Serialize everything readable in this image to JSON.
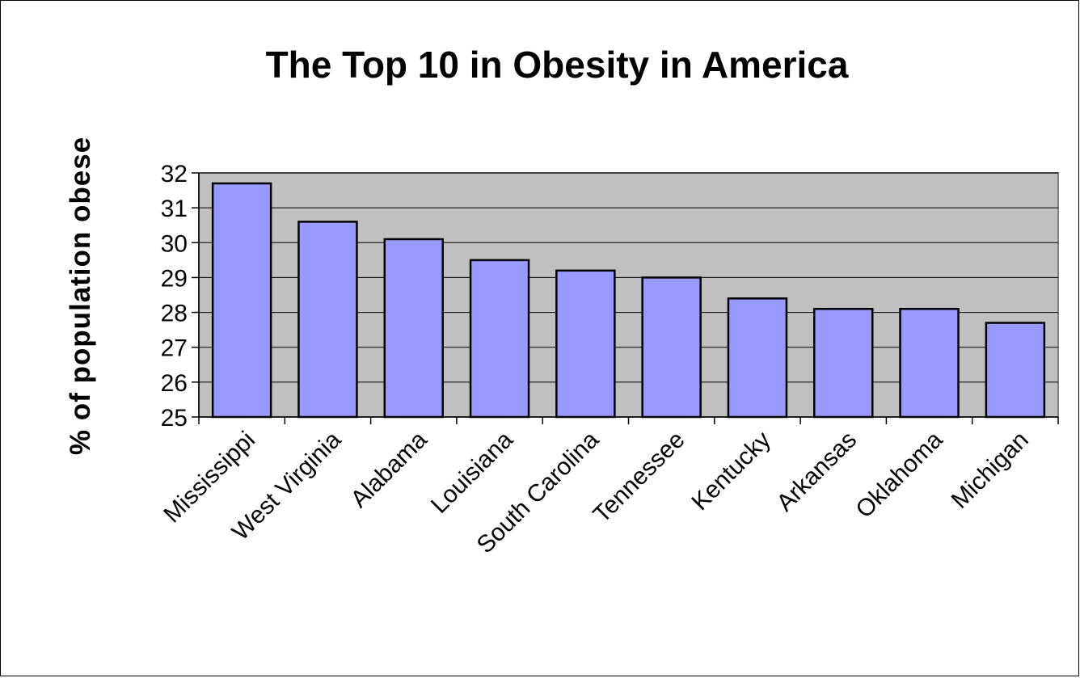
{
  "chart_data": {
    "type": "bar",
    "title": "The Top 10 in Obesity in America",
    "xlabel": "",
    "ylabel": "% of population obese",
    "categories": [
      "Mississippi",
      "West Virginia",
      "Alabama",
      "Louisiana",
      "South Carolina",
      "Tennessee",
      "Kentucky",
      "Arkansas",
      "Oklahoma",
      "Michigan"
    ],
    "values": [
      31.7,
      30.6,
      30.1,
      29.5,
      29.2,
      29.0,
      28.4,
      28.1,
      28.1,
      27.7
    ],
    "ylim": [
      25,
      32
    ],
    "yticks": [
      "25",
      "26",
      "27",
      "28",
      "29",
      "30",
      "31",
      "32"
    ],
    "grid": true,
    "legend": "none",
    "colors": {
      "bar_fill": "#9999FF",
      "bar_stroke": "#000000",
      "plot_background": "#C0C0C0",
      "gridline": "#000000"
    }
  }
}
